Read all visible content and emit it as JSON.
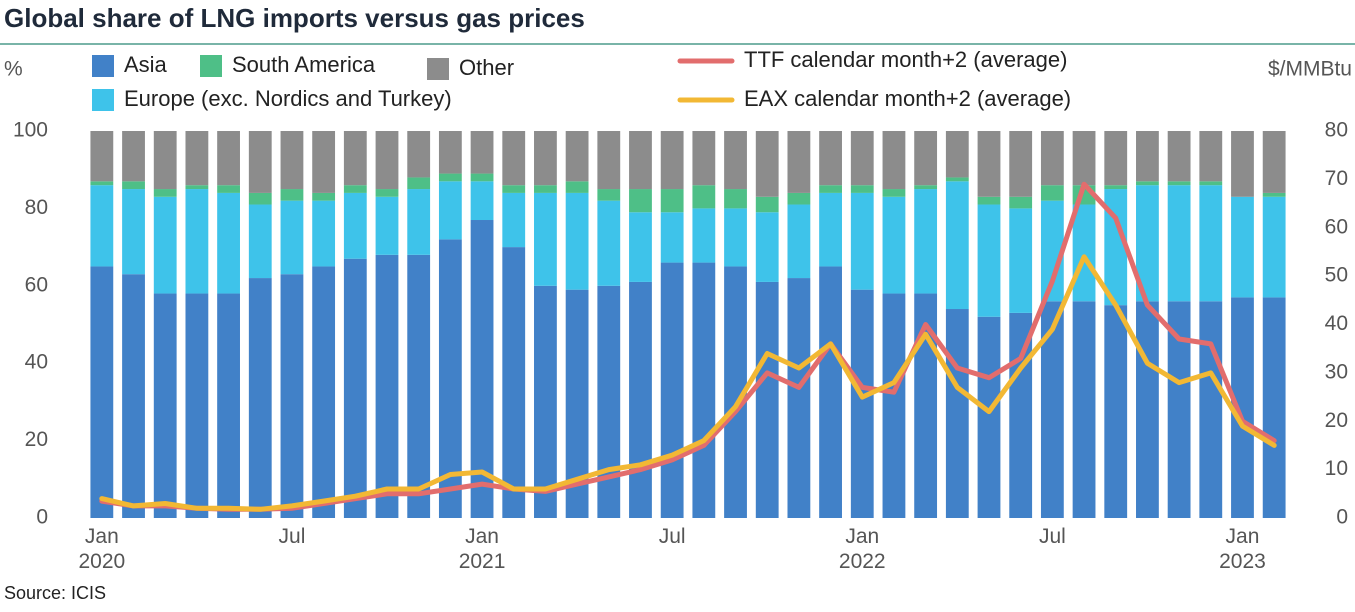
{
  "chart_data": {
    "type": "bar",
    "stacked": true,
    "title": "Global share of LNG imports versus gas prices",
    "y_label": "%",
    "y2_label": "$/MMBtu",
    "source": "Source: ICIS",
    "categories": [
      "Jan 2020",
      null,
      null,
      null,
      null,
      null,
      "Jul",
      null,
      null,
      null,
      null,
      null,
      "Jan 2021",
      null,
      null,
      null,
      null,
      null,
      "Jul",
      null,
      null,
      null,
      null,
      null,
      "Jan 2022",
      null,
      null,
      null,
      null,
      null,
      "Jul",
      null,
      null,
      null,
      null,
      null,
      "Jan 2023",
      null
    ],
    "ylim": [
      0,
      100
    ],
    "yticks": [
      0,
      20,
      40,
      60,
      80,
      100
    ],
    "y2lim": [
      0,
      80
    ],
    "y2ticks": [
      0,
      10,
      20,
      30,
      40,
      50,
      60,
      70,
      80
    ],
    "grid": false,
    "series": [
      {
        "name": "Asia",
        "color": "#4181c8",
        "values": [
          65,
          63,
          58,
          58,
          58,
          62,
          63,
          65,
          67,
          68,
          68,
          72,
          77,
          70,
          60,
          59,
          60,
          61,
          66,
          66,
          65,
          61,
          62,
          65,
          59,
          58,
          58,
          54,
          52,
          53,
          56,
          56,
          55,
          56,
          56,
          56,
          57,
          57
        ]
      },
      {
        "name": "Europe (exc. Nordics and Turkey)",
        "color": "#3ec3ea",
        "values": [
          21,
          22,
          25,
          27,
          26,
          19,
          19,
          17,
          17,
          15,
          17,
          15,
          10,
          14,
          24,
          25,
          22,
          18,
          13,
          14,
          15,
          18,
          19,
          19,
          25,
          25,
          27,
          33,
          29,
          27,
          26,
          25,
          30,
          30,
          30,
          30,
          26,
          26
        ]
      },
      {
        "name": "South America",
        "color": "#4ebf87",
        "values": [
          1,
          2,
          2,
          1,
          2,
          3,
          3,
          2,
          2,
          2,
          3,
          2,
          2,
          2,
          2,
          3,
          3,
          6,
          6,
          6,
          5,
          4,
          3,
          2,
          2,
          2,
          1,
          1,
          2,
          3,
          4,
          5,
          1,
          1,
          1,
          1,
          0,
          1
        ]
      },
      {
        "name": "Other",
        "color": "#8c8c8c",
        "values": [
          13,
          13,
          15,
          14,
          14,
          16,
          15,
          16,
          14,
          15,
          12,
          11,
          11,
          14,
          14,
          13,
          15,
          15,
          15,
          14,
          15,
          17,
          16,
          14,
          14,
          15,
          14,
          12,
          17,
          17,
          14,
          14,
          14,
          13,
          13,
          13,
          17,
          16
        ]
      },
      {
        "name": "TTF calendar month+2 (average)",
        "color": "#e26d6d",
        "type": "line",
        "axis": "y2",
        "values": [
          3.5,
          2.5,
          2.5,
          2,
          1.8,
          1.8,
          2,
          3,
          4,
          5,
          5,
          6,
          7,
          6,
          5.5,
          7,
          8.5,
          10,
          12,
          15,
          22,
          30,
          27,
          36,
          27,
          26,
          40,
          31,
          29,
          33,
          49,
          69,
          62,
          44,
          37,
          36,
          20,
          16
        ]
      },
      {
        "name": "EAX calendar month+2 (average)",
        "color": "#f2b834",
        "type": "line",
        "axis": "y2",
        "values": [
          4,
          2.5,
          3,
          2,
          2,
          1.8,
          2.5,
          3.5,
          4.5,
          6,
          6,
          9,
          9.5,
          6,
          6,
          8,
          10,
          11,
          13,
          16,
          23,
          34,
          31,
          36,
          25,
          28,
          38,
          27,
          22,
          31,
          39,
          54,
          44,
          32,
          28,
          30,
          19,
          15
        ]
      }
    ]
  }
}
